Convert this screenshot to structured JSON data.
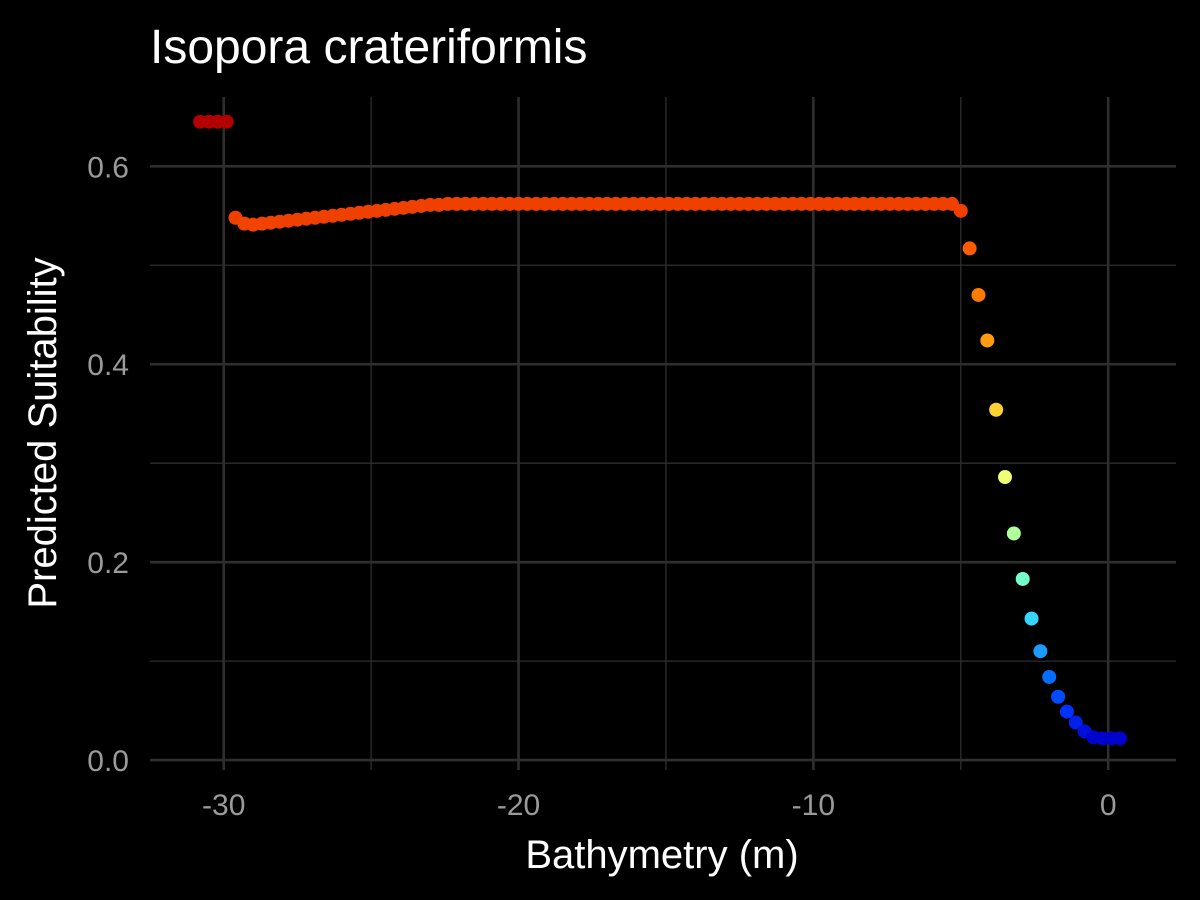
{
  "chart_data": {
    "type": "scatter",
    "title": "Isopora crateriformis",
    "xlabel": "Bathymetry (m)",
    "ylabel": "Predicted Suitability",
    "xlim": [
      -32.5,
      2.3
    ],
    "ylim": [
      -0.01,
      0.67
    ],
    "x_ticks": [
      -30,
      -20,
      -10,
      0
    ],
    "x_tick_labels": [
      "-30",
      "-20",
      "-10",
      "0"
    ],
    "y_ticks": [
      0.0,
      0.2,
      0.4,
      0.6
    ],
    "y_tick_labels": [
      "0.0",
      "0.2",
      "0.4",
      "0.6"
    ],
    "grid": true,
    "legend": "none",
    "background": "#000000",
    "grid_color": "#2e2e2e",
    "color_scale": {
      "stops": [
        {
          "value": 0.02,
          "color": "#0000c8"
        },
        {
          "value": 0.05,
          "color": "#0033ff"
        },
        {
          "value": 0.08,
          "color": "#0066ff"
        },
        {
          "value": 0.11,
          "color": "#1c9bff"
        },
        {
          "value": 0.145,
          "color": "#38d8ff"
        },
        {
          "value": 0.18,
          "color": "#70ffd0"
        },
        {
          "value": 0.23,
          "color": "#b0ff9a"
        },
        {
          "value": 0.29,
          "color": "#f2ff70"
        },
        {
          "value": 0.355,
          "color": "#ffd030"
        },
        {
          "value": 0.425,
          "color": "#ff9a10"
        },
        {
          "value": 0.47,
          "color": "#ff7a00"
        },
        {
          "value": 0.52,
          "color": "#ff5a00"
        },
        {
          "value": 0.545,
          "color": "#f04000"
        },
        {
          "value": 0.565,
          "color": "#f04000"
        },
        {
          "value": 0.6,
          "color": "#c80800"
        },
        {
          "value": 0.65,
          "color": "#b00000"
        }
      ]
    },
    "series": [
      {
        "x": [
          -30.8,
          -30.5,
          -30.2,
          -29.9,
          -29.6,
          -29.3,
          -29.0,
          -28.7,
          -28.4,
          -28.1,
          -27.8,
          -27.5,
          -27.2,
          -26.9,
          -26.6,
          -26.3,
          -26.0,
          -25.7,
          -25.4,
          -25.1,
          -24.8,
          -24.5,
          -24.2,
          -23.9,
          -23.6,
          -23.3,
          -23.0,
          -22.7,
          -22.4,
          -22.1,
          -21.8,
          -21.5,
          -21.2,
          -20.9,
          -20.6,
          -20.3,
          -20.0,
          -19.7,
          -19.4,
          -19.1,
          -18.8,
          -18.5,
          -18.2,
          -17.9,
          -17.6,
          -17.3,
          -17.0,
          -16.7,
          -16.4,
          -16.1,
          -15.8,
          -15.5,
          -15.2,
          -14.9,
          -14.6,
          -14.3,
          -14.0,
          -13.7,
          -13.4,
          -13.1,
          -12.8,
          -12.5,
          -12.2,
          -11.9,
          -11.6,
          -11.3,
          -11.0,
          -10.7,
          -10.4,
          -10.1,
          -9.8,
          -9.5,
          -9.2,
          -8.9,
          -8.6,
          -8.3,
          -8.0,
          -7.7,
          -7.4,
          -7.1,
          -6.8,
          -6.5,
          -6.2,
          -5.9,
          -5.6,
          -5.3,
          -5.0,
          -4.7,
          -4.4,
          -4.1,
          -3.8,
          -3.5,
          -3.2,
          -2.9,
          -2.6,
          -2.3,
          -2.0,
          -1.7,
          -1.4,
          -1.1,
          -0.8,
          -0.5,
          -0.2,
          0.1,
          0.4
        ],
        "y": [
          0.645,
          0.645,
          0.645,
          0.645,
          0.548,
          0.542,
          0.541,
          0.542,
          0.543,
          0.544,
          0.545,
          0.546,
          0.547,
          0.548,
          0.549,
          0.55,
          0.551,
          0.552,
          0.553,
          0.554,
          0.555,
          0.556,
          0.557,
          0.558,
          0.559,
          0.56,
          0.561,
          0.561,
          0.562,
          0.562,
          0.562,
          0.562,
          0.562,
          0.562,
          0.562,
          0.562,
          0.562,
          0.562,
          0.562,
          0.562,
          0.562,
          0.562,
          0.562,
          0.562,
          0.562,
          0.562,
          0.562,
          0.562,
          0.562,
          0.562,
          0.562,
          0.562,
          0.562,
          0.562,
          0.562,
          0.562,
          0.562,
          0.562,
          0.562,
          0.562,
          0.562,
          0.562,
          0.562,
          0.562,
          0.562,
          0.562,
          0.562,
          0.562,
          0.562,
          0.562,
          0.562,
          0.562,
          0.562,
          0.562,
          0.562,
          0.562,
          0.562,
          0.562,
          0.562,
          0.562,
          0.562,
          0.562,
          0.562,
          0.562,
          0.562,
          0.562,
          0.555,
          0.517,
          0.47,
          0.424,
          0.354,
          0.286,
          0.229,
          0.183,
          0.143,
          0.11,
          0.084,
          0.064,
          0.049,
          0.038,
          0.029,
          0.023,
          0.022,
          0.022,
          0.022
        ]
      }
    ]
  }
}
